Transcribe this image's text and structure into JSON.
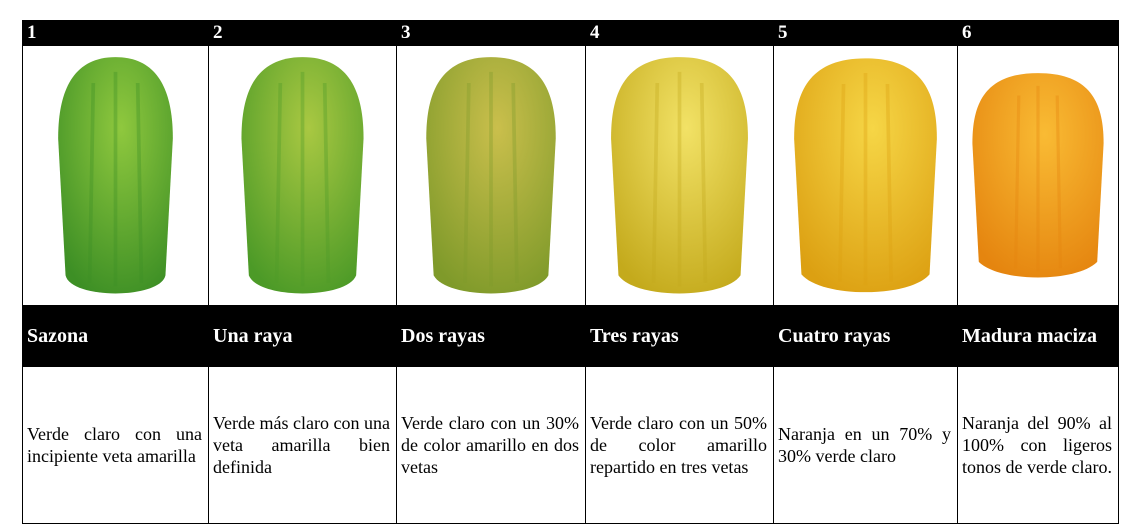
{
  "columns": [
    {
      "number": "1",
      "name": "Sazona",
      "description": "Verde claro con una incipiente veta amarilla"
    },
    {
      "number": "2",
      "name": "Una raya",
      "description": "Verde más claro con una veta amarilla bien definida"
    },
    {
      "number": "3",
      "name": "Dos rayas",
      "description": "Verde claro con un 30% de color amarillo en dos vetas"
    },
    {
      "number": "4",
      "name": "Tres rayas",
      "description": "Verde claro con un 50% de color amarillo repartido en tres vetas"
    },
    {
      "number": "5",
      "name": "Cuatro rayas",
      "description": "Naranja en un 70% y 30% verde claro"
    },
    {
      "number": "6",
      "name": "Madura maciza",
      "description": "Naranja del 90% al 100% con ligeros tonos de verde claro."
    }
  ]
}
